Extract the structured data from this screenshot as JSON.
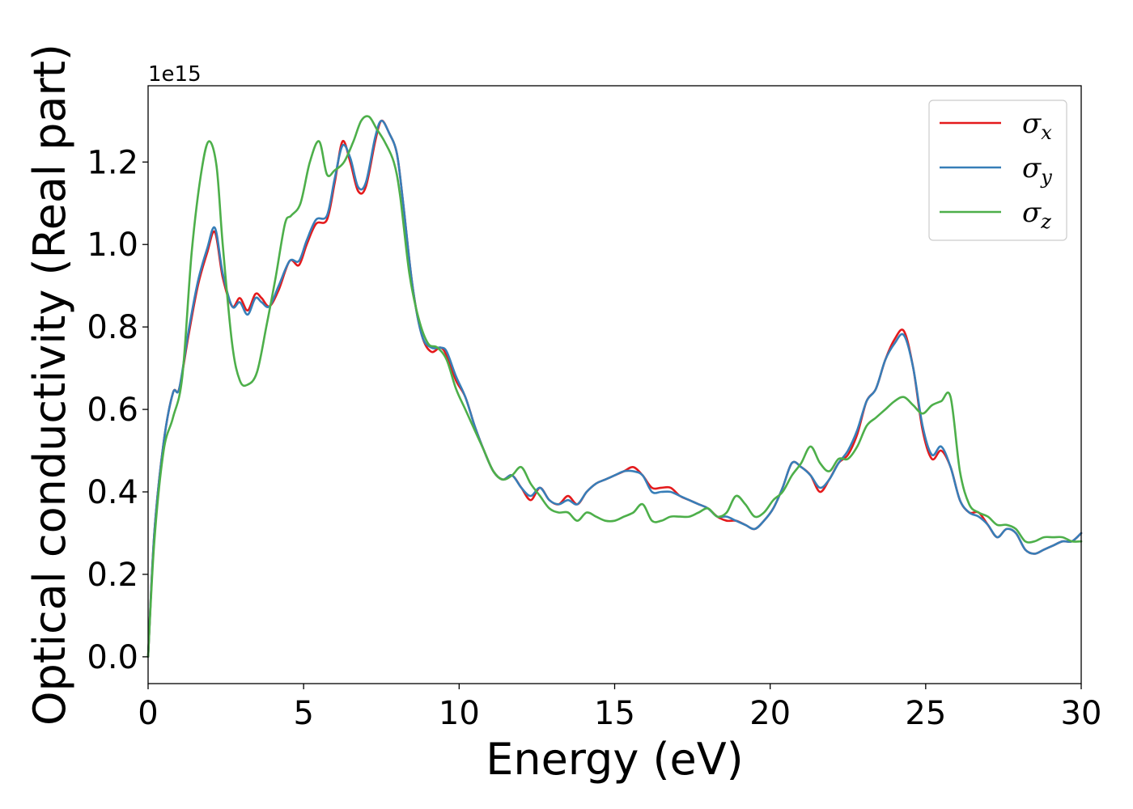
{
  "chart_data": {
    "type": "line",
    "xlabel": "Energy (eV)",
    "ylabel": "Optical conductivity (Real part)",
    "y_offset_text": "1e15",
    "xlim": [
      0,
      30
    ],
    "ylim": [
      -0.065,
      1.385
    ],
    "x_ticks": [
      0,
      5,
      10,
      15,
      20,
      25,
      30
    ],
    "x_tick_labels": [
      "0",
      "5",
      "10",
      "15",
      "20",
      "25",
      "30"
    ],
    "y_ticks": [
      0.0,
      0.2,
      0.4,
      0.6,
      0.8,
      1.0,
      1.2
    ],
    "y_tick_labels": [
      "0.0",
      "0.2",
      "0.4",
      "0.6",
      "0.8",
      "1.0",
      "1.2"
    ],
    "grid": false,
    "legend_position": "top-right",
    "series": [
      {
        "name": "σx",
        "symbol": "σ",
        "subscript": "x",
        "color": "#e41a1c",
        "x": [
          0,
          0.2,
          0.5,
          0.8,
          1.0,
          1.3,
          1.6,
          1.9,
          2.15,
          2.4,
          2.7,
          2.95,
          3.2,
          3.45,
          3.65,
          3.9,
          4.2,
          4.55,
          4.85,
          5.1,
          5.4,
          5.75,
          6.0,
          6.25,
          6.5,
          6.75,
          7.0,
          7.3,
          7.5,
          7.75,
          8.0,
          8.2,
          8.5,
          8.8,
          9.1,
          9.4,
          9.6,
          9.9,
          10.2,
          10.5,
          10.8,
          11.1,
          11.4,
          11.7,
          12.0,
          12.3,
          12.6,
          12.9,
          13.2,
          13.5,
          13.8,
          14.1,
          14.4,
          14.7,
          15.0,
          15.3,
          15.6,
          15.9,
          16.2,
          16.5,
          16.8,
          17.1,
          17.4,
          17.7,
          18.0,
          18.3,
          18.6,
          18.9,
          19.2,
          19.5,
          19.8,
          20.1,
          20.4,
          20.7,
          21.0,
          21.3,
          21.6,
          21.9,
          22.2,
          22.5,
          22.8,
          23.1,
          23.4,
          23.7,
          24.0,
          24.3,
          24.6,
          24.9,
          25.2,
          25.5,
          25.8,
          26.1,
          26.4,
          26.7,
          27.0,
          27.3,
          27.6,
          27.9,
          28.2,
          28.5,
          28.8,
          29.1,
          29.4,
          29.7,
          30.0
        ],
        "values": [
          0.0,
          0.3,
          0.52,
          0.64,
          0.65,
          0.78,
          0.9,
          0.98,
          1.03,
          0.92,
          0.85,
          0.87,
          0.84,
          0.88,
          0.87,
          0.85,
          0.89,
          0.96,
          0.95,
          1.0,
          1.05,
          1.06,
          1.15,
          1.25,
          1.2,
          1.13,
          1.14,
          1.25,
          1.3,
          1.27,
          1.22,
          1.1,
          0.9,
          0.78,
          0.74,
          0.75,
          0.73,
          0.67,
          0.63,
          0.56,
          0.5,
          0.45,
          0.43,
          0.44,
          0.41,
          0.38,
          0.41,
          0.38,
          0.37,
          0.39,
          0.37,
          0.4,
          0.42,
          0.43,
          0.44,
          0.45,
          0.46,
          0.44,
          0.41,
          0.41,
          0.41,
          0.39,
          0.38,
          0.37,
          0.36,
          0.34,
          0.33,
          0.33,
          0.32,
          0.31,
          0.33,
          0.36,
          0.41,
          0.47,
          0.46,
          0.44,
          0.4,
          0.43,
          0.47,
          0.49,
          0.54,
          0.62,
          0.65,
          0.72,
          0.77,
          0.79,
          0.7,
          0.55,
          0.48,
          0.5,
          0.46,
          0.38,
          0.35,
          0.35,
          0.32,
          0.29,
          0.31,
          0.3,
          0.26,
          0.25,
          0.26,
          0.27,
          0.28,
          0.28,
          0.3
        ]
      },
      {
        "name": "σy",
        "symbol": "σ",
        "subscript": "y",
        "color": "#377eb8",
        "x": [
          0,
          0.2,
          0.5,
          0.8,
          1.0,
          1.3,
          1.6,
          1.9,
          2.15,
          2.4,
          2.7,
          2.95,
          3.2,
          3.45,
          3.65,
          3.9,
          4.2,
          4.55,
          4.85,
          5.1,
          5.4,
          5.75,
          6.0,
          6.25,
          6.5,
          6.75,
          7.0,
          7.3,
          7.5,
          7.75,
          8.0,
          8.2,
          8.5,
          8.8,
          9.1,
          9.4,
          9.6,
          9.9,
          10.2,
          10.5,
          10.8,
          11.1,
          11.4,
          11.7,
          12.0,
          12.3,
          12.6,
          12.9,
          13.2,
          13.5,
          13.8,
          14.1,
          14.4,
          14.7,
          15.0,
          15.3,
          15.6,
          15.9,
          16.2,
          16.5,
          16.8,
          17.1,
          17.4,
          17.7,
          18.0,
          18.3,
          18.6,
          18.9,
          19.2,
          19.5,
          19.8,
          20.1,
          20.4,
          20.7,
          21.0,
          21.3,
          21.6,
          21.9,
          22.2,
          22.5,
          22.8,
          23.1,
          23.4,
          23.7,
          24.0,
          24.3,
          24.6,
          24.9,
          25.2,
          25.5,
          25.8,
          26.1,
          26.4,
          26.7,
          27.0,
          27.3,
          27.6,
          27.9,
          28.2,
          28.5,
          28.8,
          29.1,
          29.4,
          29.7,
          30.0
        ],
        "values": [
          0.0,
          0.3,
          0.52,
          0.64,
          0.65,
          0.79,
          0.91,
          0.99,
          1.04,
          0.93,
          0.85,
          0.86,
          0.83,
          0.87,
          0.86,
          0.85,
          0.9,
          0.96,
          0.96,
          1.01,
          1.06,
          1.07,
          1.16,
          1.24,
          1.21,
          1.14,
          1.15,
          1.26,
          1.3,
          1.27,
          1.22,
          1.1,
          0.9,
          0.78,
          0.75,
          0.75,
          0.74,
          0.68,
          0.63,
          0.56,
          0.5,
          0.45,
          0.43,
          0.44,
          0.41,
          0.39,
          0.41,
          0.38,
          0.37,
          0.38,
          0.37,
          0.4,
          0.42,
          0.43,
          0.44,
          0.45,
          0.45,
          0.44,
          0.4,
          0.4,
          0.4,
          0.39,
          0.38,
          0.37,
          0.36,
          0.34,
          0.34,
          0.33,
          0.32,
          0.31,
          0.33,
          0.36,
          0.41,
          0.47,
          0.46,
          0.44,
          0.41,
          0.43,
          0.47,
          0.5,
          0.55,
          0.62,
          0.65,
          0.72,
          0.76,
          0.78,
          0.7,
          0.56,
          0.49,
          0.51,
          0.46,
          0.38,
          0.35,
          0.34,
          0.32,
          0.29,
          0.31,
          0.3,
          0.26,
          0.25,
          0.26,
          0.27,
          0.28,
          0.28,
          0.3
        ]
      },
      {
        "name": "σz",
        "symbol": "σ",
        "subscript": "z",
        "color": "#4daf4a",
        "x": [
          0,
          0.2,
          0.5,
          0.8,
          1.1,
          1.4,
          1.7,
          1.95,
          2.2,
          2.4,
          2.7,
          2.95,
          3.2,
          3.5,
          3.8,
          4.1,
          4.4,
          4.6,
          4.9,
          5.2,
          5.5,
          5.75,
          6.0,
          6.3,
          6.6,
          6.85,
          7.1,
          7.35,
          7.6,
          7.9,
          8.1,
          8.4,
          8.7,
          9.0,
          9.3,
          9.6,
          9.9,
          10.2,
          10.5,
          10.8,
          11.1,
          11.4,
          11.7,
          12.0,
          12.3,
          12.6,
          12.9,
          13.2,
          13.5,
          13.8,
          14.1,
          14.4,
          14.7,
          15.0,
          15.3,
          15.6,
          15.9,
          16.2,
          16.5,
          16.8,
          17.1,
          17.4,
          17.7,
          18.0,
          18.3,
          18.6,
          18.9,
          19.2,
          19.5,
          19.8,
          20.1,
          20.4,
          20.7,
          21.0,
          21.3,
          21.6,
          21.9,
          22.2,
          22.5,
          22.8,
          23.1,
          23.4,
          23.7,
          24.0,
          24.3,
          24.6,
          24.9,
          25.2,
          25.5,
          25.8,
          26.1,
          26.4,
          26.7,
          27.0,
          27.3,
          27.6,
          27.9,
          28.2,
          28.5,
          28.8,
          29.1,
          29.4,
          29.7,
          30.0
        ],
        "values": [
          0.0,
          0.28,
          0.5,
          0.58,
          0.68,
          0.98,
          1.17,
          1.25,
          1.19,
          1.0,
          0.76,
          0.67,
          0.66,
          0.69,
          0.8,
          0.92,
          1.05,
          1.07,
          1.1,
          1.2,
          1.25,
          1.17,
          1.18,
          1.2,
          1.25,
          1.3,
          1.31,
          1.28,
          1.25,
          1.2,
          1.12,
          0.93,
          0.82,
          0.76,
          0.75,
          0.72,
          0.65,
          0.6,
          0.55,
          0.5,
          0.45,
          0.43,
          0.44,
          0.46,
          0.42,
          0.39,
          0.36,
          0.35,
          0.35,
          0.33,
          0.35,
          0.34,
          0.33,
          0.33,
          0.34,
          0.35,
          0.37,
          0.33,
          0.33,
          0.34,
          0.34,
          0.34,
          0.35,
          0.36,
          0.34,
          0.35,
          0.39,
          0.37,
          0.34,
          0.35,
          0.38,
          0.4,
          0.44,
          0.47,
          0.51,
          0.47,
          0.45,
          0.48,
          0.48,
          0.51,
          0.56,
          0.58,
          0.6,
          0.62,
          0.63,
          0.61,
          0.59,
          0.61,
          0.62,
          0.63,
          0.45,
          0.37,
          0.35,
          0.34,
          0.32,
          0.32,
          0.31,
          0.28,
          0.28,
          0.29,
          0.29,
          0.29,
          0.28,
          0.28
        ]
      }
    ]
  }
}
